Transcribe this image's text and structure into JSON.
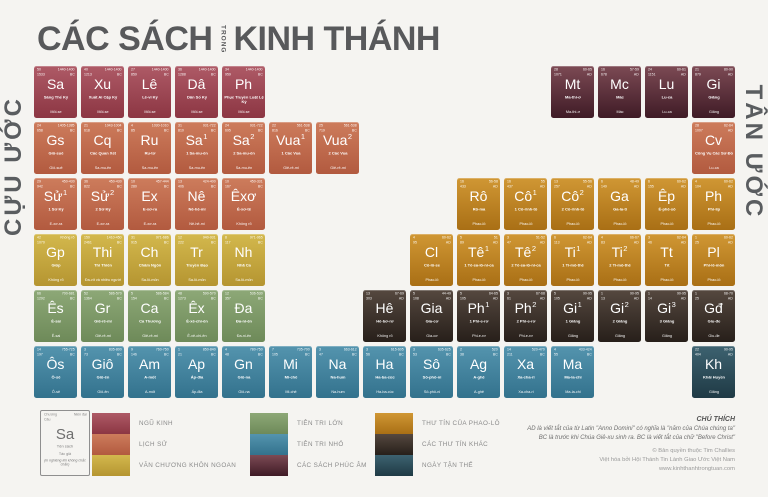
{
  "title": {
    "part1": "CÁC SÁCH",
    "middle": "TRONG",
    "part2": "KINH THÁNH"
  },
  "left_label": "CỰU ƯỚC",
  "right_label": "TÂN ƯỚC",
  "categories": {
    "ngu_kinh": {
      "label": "NGŨ KINH",
      "top": "#ae5a66",
      "bottom": "#8c3643"
    },
    "lich_su": {
      "label": "LỊCH SỬ",
      "top": "#cd7c5c",
      "bottom": "#b25a3f"
    },
    "van_chuong": {
      "label": "VĂN CHƯƠNG KHÔN NGOAN",
      "top": "#d3b84d",
      "bottom": "#b59531"
    },
    "tien_tri_lon": {
      "label": "TIÊN TRI LỚN",
      "top": "#8da877",
      "bottom": "#6e8a59"
    },
    "tien_tri_nho": {
      "label": "TIÊN TRI NHỎ",
      "top": "#5494ae",
      "bottom": "#33728d"
    },
    "phuc_am": {
      "label": "CÁC SÁCH PHÚC ÂM",
      "top": "#7c4a54",
      "bottom": "#3f1b26"
    },
    "thu_tin_phaolo": {
      "label": "THƯ TÍN CỦA PHAO-LÔ",
      "top": "#d09734",
      "bottom": "#a96f15"
    },
    "thu_tin_khac": {
      "label": "CÁC THƯ TÍN KHÁC",
      "top": "#55483f",
      "bottom": "#271f1a"
    },
    "ngay_tan_the": {
      "label": "NGÀY TẬN THẾ",
      "top": "#3d6270",
      "bottom": "#1f3a45"
    }
  },
  "books": [
    {
      "r": 1,
      "c": 1,
      "sym": "Sa",
      "sup": "",
      "ch": "50",
      "vs": "1533",
      "date": "1440-1400",
      "era": "BC",
      "name": "Sáng Thế Ký",
      "author": "Môi-se",
      "cat": "ngu_kinh"
    },
    {
      "r": 1,
      "c": 2,
      "sym": "Xu",
      "sup": "",
      "ch": "40",
      "vs": "1213",
      "date": "1440-1400",
      "era": "BC",
      "name": "Xuất Ai Cập Ký",
      "author": "Môi-se",
      "cat": "ngu_kinh"
    },
    {
      "r": 1,
      "c": 3,
      "sym": "Lê",
      "sup": "",
      "ch": "27",
      "vs": "859",
      "date": "1440-1400",
      "era": "BC",
      "name": "Lê-vi Ký",
      "author": "Môi-se",
      "cat": "ngu_kinh"
    },
    {
      "r": 1,
      "c": 4,
      "sym": "Dâ",
      "sup": "",
      "ch": "36",
      "vs": "1288",
      "date": "1440-1400",
      "era": "BC",
      "name": "Dân Số Ký",
      "author": "Môi-se",
      "cat": "ngu_kinh"
    },
    {
      "r": 1,
      "c": 5,
      "sym": "Ph",
      "sup": "",
      "ch": "34",
      "vs": "959",
      "date": "1440-1400",
      "era": "BC",
      "name": "Phục Truyền Luật Lệ Ký",
      "author": "Môi-se",
      "cat": "ngu_kinh"
    },
    {
      "r": 2,
      "c": 1,
      "sym": "Gs",
      "sup": "",
      "ch": "24",
      "vs": "658",
      "date": "1405-1385",
      "era": "BC",
      "name": "Giô-suê",
      "author": "Giô-suê",
      "cat": "lich_su"
    },
    {
      "r": 2,
      "c": 2,
      "sym": "Cq",
      "sup": "",
      "ch": "21",
      "vs": "618",
      "date": "1043-1004",
      "era": "BC",
      "name": "Các Quan Xét",
      "author": "Sa-mu-ên",
      "cat": "lich_su"
    },
    {
      "r": 2,
      "c": 3,
      "sym": "Ru",
      "sup": "",
      "ch": "4",
      "vs": "85",
      "date": "1030-1010",
      "era": "BC",
      "name": "Ru-tơ",
      "author": "Sa-mu-ên",
      "cat": "lich_su"
    },
    {
      "r": 2,
      "c": 4,
      "sym": "Sa",
      "sup": "1",
      "ch": "31",
      "vs": "810",
      "date": "931-722",
      "era": "BC",
      "name": "1 Sa-mu-ên",
      "author": "Sa-mu-ên",
      "cat": "lich_su"
    },
    {
      "r": 2,
      "c": 5,
      "sym": "Sa",
      "sup": "2",
      "ch": "24",
      "vs": "695",
      "date": "931-722",
      "era": "BC",
      "name": "2 Sa-mu-ên",
      "author": "Sa-mu-ên",
      "cat": "lich_su"
    },
    {
      "r": 2,
      "c": 6,
      "sym": "Vua",
      "sup": "1",
      "ch": "22",
      "vs": "816",
      "date": "561-538",
      "era": "BC",
      "name": "1 Các Vua",
      "author": "Giê-rê-mi",
      "cat": "lich_su"
    },
    {
      "r": 2,
      "c": 7,
      "sym": "Vua",
      "sup": "2",
      "ch": "25",
      "vs": "719",
      "date": "561-538",
      "era": "BC",
      "name": "2 Các Vua",
      "author": "Giê-rê-mi",
      "cat": "lich_su"
    },
    {
      "r": 3,
      "c": 1,
      "sym": "Sử",
      "sup": "1",
      "ch": "29",
      "vs": "942",
      "date": "450-430",
      "era": "BC",
      "name": "1 Sử Ký",
      "author": "E-xơ-ra",
      "cat": "lich_su"
    },
    {
      "r": 3,
      "c": 2,
      "sym": "Sử",
      "sup": "2",
      "ch": "36",
      "vs": "822",
      "date": "450-430",
      "era": "BC",
      "name": "2 Sử Ký",
      "author": "E-xơ-ra",
      "cat": "lich_su"
    },
    {
      "r": 3,
      "c": 3,
      "sym": "Ex",
      "sup": "",
      "ch": "10",
      "vs": "280",
      "date": "457-444",
      "era": "BC",
      "name": "E-xơ-ra",
      "author": "E-xơ-ra",
      "cat": "lich_su"
    },
    {
      "r": 3,
      "c": 4,
      "sym": "Nê",
      "sup": "",
      "ch": "13",
      "vs": "406",
      "date": "424-400",
      "era": "BC",
      "name": "Nê-hê-mi",
      "author": "Nê-hê-mi",
      "cat": "lich_su"
    },
    {
      "r": 3,
      "c": 5,
      "sym": "Êxơ",
      "sup": "",
      "ch": "10",
      "vs": "167",
      "date": "450-331",
      "era": "BC",
      "name": "Ê-xơ-tê",
      "author": "Không rõ",
      "cat": "lich_su"
    },
    {
      "r": 4,
      "c": 1,
      "sym": "Gp",
      "sup": "",
      "ch": "42",
      "vs": "1070",
      "date": "Không rõ",
      "era": "",
      "name": "Gióp",
      "author": "Không rõ",
      "cat": "van_chuong"
    },
    {
      "r": 4,
      "c": 2,
      "sym": "Thi",
      "sup": "",
      "ch": "150",
      "vs": "2461",
      "date": "1410-450",
      "era": "BC",
      "name": "Thi Thiên",
      "author": "Đa-vít và nhiều người",
      "cat": "van_chuong"
    },
    {
      "r": 4,
      "c": 3,
      "sym": "Ch",
      "sup": "",
      "ch": "31",
      "vs": "915",
      "date": "971-686",
      "era": "BC",
      "name": "Châm Ngôn",
      "author": "Sa-lô-môn",
      "cat": "van_chuong"
    },
    {
      "r": 4,
      "c": 4,
      "sym": "Tr",
      "sup": "",
      "ch": "12",
      "vs": "222",
      "date": "940-931",
      "era": "BC",
      "name": "Truyền Đạo",
      "author": "Sa-lô-môn",
      "cat": "van_chuong"
    },
    {
      "r": 4,
      "c": 5,
      "sym": "Nh",
      "sup": "",
      "ch": "8",
      "vs": "117",
      "date": "971-965",
      "era": "BC",
      "name": "Nhã Ca",
      "author": "Sa-lô-môn",
      "cat": "van_chuong"
    },
    {
      "r": 5,
      "c": 1,
      "sym": "Ês",
      "sup": "",
      "ch": "66",
      "vs": "1292",
      "date": "700-681",
      "era": "BC",
      "name": "Ê-sai",
      "author": "Ê-sai",
      "cat": "tien_tri_lon"
    },
    {
      "r": 5,
      "c": 2,
      "sym": "Gr",
      "sup": "",
      "ch": "52",
      "vs": "1364",
      "date": "586-570",
      "era": "BC",
      "name": "Giê-rê-mi",
      "author": "Giê-rê-mi",
      "cat": "tien_tri_lon"
    },
    {
      "r": 5,
      "c": 3,
      "sym": "Ca",
      "sup": "",
      "ch": "5",
      "vs": "154",
      "date": "586-584",
      "era": "BC",
      "name": "Ca Thương",
      "author": "Giê-rê-mi",
      "cat": "tien_tri_lon"
    },
    {
      "r": 5,
      "c": 4,
      "sym": "Êx",
      "sup": "",
      "ch": "48",
      "vs": "1273",
      "date": "590-570",
      "era": "BC",
      "name": "Ê-xê-chi-ên",
      "author": "Ê-xê-chi-ên",
      "cat": "tien_tri_lon"
    },
    {
      "r": 5,
      "c": 5,
      "sym": "Đa",
      "sup": "",
      "ch": "12",
      "vs": "357",
      "date": "536-530",
      "era": "BC",
      "name": "Đa-ni-ên",
      "author": "Đa-ni-ên",
      "cat": "tien_tri_lon"
    },
    {
      "r": 6,
      "c": 1,
      "sym": "Ôs",
      "sup": "",
      "ch": "14",
      "vs": "197",
      "date": "755-725",
      "era": "BC",
      "name": "Ô-sê",
      "author": "Ô-sê",
      "cat": "tien_tri_nho"
    },
    {
      "r": 6,
      "c": 2,
      "sym": "Giô",
      "sup": "",
      "ch": "3",
      "vs": "73",
      "date": "835-800",
      "era": "BC",
      "name": "Giô-ên",
      "author": "Giô-ên",
      "cat": "tien_tri_nho"
    },
    {
      "r": 6,
      "c": 3,
      "sym": "Am",
      "sup": "",
      "ch": "9",
      "vs": "146",
      "date": "760-750",
      "era": "BC",
      "name": "A-mốt",
      "author": "A-mốt",
      "cat": "tien_tri_nho"
    },
    {
      "r": 6,
      "c": 4,
      "sym": "Ap",
      "sup": "",
      "ch": "1",
      "vs": "21",
      "date": "850-840",
      "era": "BC",
      "name": "Áp-đia",
      "author": "Áp-đia",
      "cat": "tien_tri_nho"
    },
    {
      "r": 6,
      "c": 5,
      "sym": "Gn",
      "sup": "",
      "ch": "4",
      "vs": "48",
      "date": "780-750",
      "era": "BC",
      "name": "Giô-na",
      "author": "Giô-na",
      "cat": "tien_tri_nho"
    },
    {
      "r": 6,
      "c": 6,
      "sym": "Mi",
      "sup": "",
      "ch": "7",
      "vs": "105",
      "date": "735-700",
      "era": "BC",
      "name": "Mi-chê",
      "author": "Mi-chê",
      "cat": "tien_tri_nho"
    },
    {
      "r": 6,
      "c": 7,
      "sym": "Na",
      "sup": "",
      "ch": "3",
      "vs": "47",
      "date": "663-612",
      "era": "BC",
      "name": "Na-hum",
      "author": "Na-hum",
      "cat": "tien_tri_nho"
    },
    {
      "r": 6,
      "c": 8,
      "sym": "Ha",
      "sup": "",
      "ch": "3",
      "vs": "56",
      "date": "615-605",
      "era": "BC",
      "name": "Ha-ba-cúc",
      "author": "Ha-ba-cúc",
      "cat": "tien_tri_nho"
    },
    {
      "r": 6,
      "c": 9,
      "sym": "Sô",
      "sup": "",
      "ch": "3",
      "vs": "53",
      "date": "635-625",
      "era": "BC",
      "name": "Sô-phô-ni",
      "author": "Sô-phô-ni",
      "cat": "tien_tri_nho"
    },
    {
      "r": 6,
      "c": 10,
      "sym": "Ag",
      "sup": "",
      "ch": "2",
      "vs": "38",
      "date": "520",
      "era": "BC",
      "name": "A-ghê",
      "author": "A-ghê",
      "cat": "tien_tri_nho"
    },
    {
      "r": 6,
      "c": 11,
      "sym": "Xa",
      "sup": "",
      "ch": "14",
      "vs": "211",
      "date": "520-470",
      "era": "BC",
      "name": "Xa-cha-ri",
      "author": "Xa-cha-ri",
      "cat": "tien_tri_nho"
    },
    {
      "r": 6,
      "c": 12,
      "sym": "Ma",
      "sup": "",
      "ch": "4",
      "vs": "55",
      "date": "433-424",
      "era": "BC",
      "name": "Ma-la-chi",
      "author": "Ma-la-chi",
      "cat": "tien_tri_nho"
    },
    {
      "r": 1,
      "c": 12,
      "sym": "Mt",
      "sup": "",
      "ch": "28",
      "vs": "1071",
      "date": "60-65",
      "era": "AD",
      "name": "Ma-thi-ơ",
      "author": "Ma-thi-ơ",
      "cat": "phuc_am"
    },
    {
      "r": 1,
      "c": 13,
      "sym": "Mc",
      "sup": "",
      "ch": "16",
      "vs": "678",
      "date": "57-59",
      "era": "AD",
      "name": "Mác",
      "author": "Mác",
      "cat": "phuc_am"
    },
    {
      "r": 1,
      "c": 14,
      "sym": "Lu",
      "sup": "",
      "ch": "24",
      "vs": "1151",
      "date": "60-61",
      "era": "AD",
      "name": "Lu-ca",
      "author": "Lu-ca",
      "cat": "phuc_am"
    },
    {
      "r": 1,
      "c": 15,
      "sym": "Gi",
      "sup": "",
      "ch": "21",
      "vs": "879",
      "date": "80-90",
      "era": "AD",
      "name": "Giăng",
      "author": "Giăng",
      "cat": "phuc_am"
    },
    {
      "r": 2,
      "c": 15,
      "sym": "Cv",
      "sup": "",
      "ch": "28",
      "vs": "1007",
      "date": "62-64",
      "era": "AD",
      "name": "Công Vụ Các Sứ Đồ",
      "author": "Lu-ca",
      "cat": "lich_su"
    },
    {
      "r": 3,
      "c": 10,
      "sym": "Rô",
      "sup": "",
      "ch": "16",
      "vs": "433",
      "date": "56-58",
      "era": "AD",
      "name": "Rô-ma",
      "author": "Phao-lô",
      "cat": "thu_tin_phaolo"
    },
    {
      "r": 3,
      "c": 11,
      "sym": "Cô",
      "sup": "1",
      "ch": "16",
      "vs": "437",
      "date": "55",
      "era": "AD",
      "name": "1 Cô-rinh-tô",
      "author": "Phao-lô",
      "cat": "thu_tin_phaolo"
    },
    {
      "r": 3,
      "c": 12,
      "sym": "Cô",
      "sup": "2",
      "ch": "13",
      "vs": "257",
      "date": "55-56",
      "era": "AD",
      "name": "2 Cô-rinh-tô",
      "author": "Phao-lô",
      "cat": "thu_tin_phaolo"
    },
    {
      "r": 3,
      "c": 13,
      "sym": "Ga",
      "sup": "",
      "ch": "6",
      "vs": "149",
      "date": "48-49",
      "era": "AD",
      "name": "Ga-la-ti",
      "author": "Phao-lô",
      "cat": "thu_tin_phaolo"
    },
    {
      "r": 3,
      "c": 14,
      "sym": "Êp",
      "sup": "",
      "ch": "6",
      "vs": "155",
      "date": "60-62",
      "era": "AD",
      "name": "Ê-phê-sô",
      "author": "Phao-lô",
      "cat": "thu_tin_phaolo"
    },
    {
      "r": 3,
      "c": 15,
      "sym": "Ph",
      "sup": "",
      "ch": "4",
      "vs": "104",
      "date": "60-62",
      "era": "AD",
      "name": "Phi-líp",
      "author": "Phao-lô",
      "cat": "thu_tin_phaolo"
    },
    {
      "r": 4,
      "c": 9,
      "sym": "Cl",
      "sup": "",
      "ch": "4",
      "vs": "95",
      "date": "60-62",
      "era": "AD",
      "name": "Cô-lô-se",
      "author": "Phao-lô",
      "cat": "thu_tin_phaolo"
    },
    {
      "r": 4,
      "c": 10,
      "sym": "Tê",
      "sup": "1",
      "ch": "5",
      "vs": "89",
      "date": "51",
      "era": "AD",
      "name": "1 Tê-sa-lô-ni-ca",
      "author": "Phao-lô",
      "cat": "thu_tin_phaolo"
    },
    {
      "r": 4,
      "c": 11,
      "sym": "Tê",
      "sup": "2",
      "ch": "3",
      "vs": "47",
      "date": "51-52",
      "era": "AD",
      "name": "2 Tê-sa-lô-ni-ca",
      "author": "Phao-lô",
      "cat": "thu_tin_phaolo"
    },
    {
      "r": 4,
      "c": 12,
      "sym": "Ti",
      "sup": "1",
      "ch": "6",
      "vs": "113",
      "date": "62-64",
      "era": "AD",
      "name": "1 Ti-mô-thê",
      "author": "Phao-lô",
      "cat": "thu_tin_phaolo"
    },
    {
      "r": 4,
      "c": 13,
      "sym": "Ti",
      "sup": "2",
      "ch": "4",
      "vs": "83",
      "date": "66-67",
      "era": "AD",
      "name": "2 Ti-mô-thê",
      "author": "Phao-lô",
      "cat": "thu_tin_phaolo"
    },
    {
      "r": 4,
      "c": 14,
      "sym": "Tt",
      "sup": "",
      "ch": "3",
      "vs": "46",
      "date": "62-64",
      "era": "AD",
      "name": "Tít",
      "author": "Phao-lô",
      "cat": "thu_tin_phaolo"
    },
    {
      "r": 4,
      "c": 15,
      "sym": "Pl",
      "sup": "",
      "ch": "1",
      "vs": "25",
      "date": "60-62",
      "era": "AD",
      "name": "Phi-lê-môn",
      "author": "Phao-lô",
      "cat": "thu_tin_phaolo"
    },
    {
      "r": 5,
      "c": 8,
      "sym": "Hê",
      "sup": "",
      "ch": "13",
      "vs": "303",
      "date": "67-69",
      "era": "AD",
      "name": "Hê-bơ-rơ",
      "author": "Không rõ",
      "cat": "thu_tin_khac"
    },
    {
      "r": 5,
      "c": 9,
      "sym": "Gia",
      "sup": "",
      "ch": "5",
      "vs": "108",
      "date": "44-49",
      "era": "AD",
      "name": "Gia-cơ",
      "author": "Gia-cơ",
      "cat": "thu_tin_khac"
    },
    {
      "r": 5,
      "c": 10,
      "sym": "Ph",
      "sup": "1",
      "ch": "5",
      "vs": "105",
      "date": "64-65",
      "era": "AD",
      "name": "1 Phi-e-rơ",
      "author": "Phi-e-rơ",
      "cat": "thu_tin_khac"
    },
    {
      "r": 5,
      "c": 11,
      "sym": "Ph",
      "sup": "2",
      "ch": "3",
      "vs": "61",
      "date": "67-68",
      "era": "AD",
      "name": "2 Phi-e-rơ",
      "author": "Phi-e-rơ",
      "cat": "thu_tin_khac"
    },
    {
      "r": 5,
      "c": 12,
      "sym": "Gi",
      "sup": "1",
      "ch": "5",
      "vs": "105",
      "date": "90-95",
      "era": "AD",
      "name": "1 Giăng",
      "author": "Giăng",
      "cat": "thu_tin_khac"
    },
    {
      "r": 5,
      "c": 13,
      "sym": "Gi",
      "sup": "2",
      "ch": "1",
      "vs": "13",
      "date": "90-95",
      "era": "AD",
      "name": "2 Giăng",
      "author": "Giăng",
      "cat": "thu_tin_khac"
    },
    {
      "r": 5,
      "c": 14,
      "sym": "Gi",
      "sup": "3",
      "ch": "1",
      "vs": "14",
      "date": "90-95",
      "era": "AD",
      "name": "3 Giăng",
      "author": "Giăng",
      "cat": "thu_tin_khac"
    },
    {
      "r": 5,
      "c": 15,
      "sym": "Gđ",
      "sup": "",
      "ch": "1",
      "vs": "25",
      "date": "68-70",
      "era": "AD",
      "name": "Giu-đe",
      "author": "Giu-đe",
      "cat": "thu_tin_khac"
    },
    {
      "r": 6,
      "c": 15,
      "sym": "Kh",
      "sup": "",
      "ch": "22",
      "vs": "404",
      "date": "90-95",
      "era": "AD",
      "name": "Khải Huyền",
      "author": "Giăng",
      "cat": "ngay_tan_the"
    }
  ],
  "legend": {
    "key": {
      "chapters_label": "Chương",
      "verses_label": "Câu",
      "date_label": "Niên đại",
      "symbol": "Sa",
      "name_label": "Tên sách",
      "author_label": "Tác giả",
      "note": "(in nghiêng khi không chắc chắn)"
    },
    "groups": [
      [
        {
          "label": "NGŨ KINH",
          "cat": "ngu_kinh"
        },
        {
          "label": "LỊCH SỬ",
          "cat": "lich_su"
        },
        {
          "label": "VĂN CHƯƠNG KHÔN NGOAN",
          "cat": "van_chuong"
        }
      ],
      [
        {
          "label": "TIÊN TRI LỚN",
          "cat": "tien_tri_lon"
        },
        {
          "label": "TIÊN TRI NHỎ",
          "cat": "tien_tri_nho"
        },
        {
          "label": "CÁC SÁCH PHÚC ÂM",
          "cat": "phuc_am"
        }
      ],
      [
        {
          "label": "THƯ TÍN CỦA PHAO-LÔ",
          "cat": "thu_tin_phaolo"
        },
        {
          "label": "CÁC THƯ TÍN KHÁC",
          "cat": "thu_tin_khac"
        },
        {
          "label": "NGÀY TẬN THẾ",
          "cat": "ngay_tan_the"
        }
      ]
    ]
  },
  "footnote": {
    "heading": "CHÚ THÍCH",
    "lines": [
      "AD là viết tắt của từ Latin \"Anno Domini\" có nghĩa là \"năm của Chúa chúng ta\"",
      "BC là trước khi Chúa Giê-xu sinh ra. BC là viết tắt của chữ \"Before Christ\""
    ]
  },
  "credits": [
    "© Bản quyền thuộc Tim Challies",
    "Việt hóa bởi Hội Thánh Tin Lành Giao Ước Việt Nam",
    "www.kinhthanhtrongtuan.com"
  ]
}
